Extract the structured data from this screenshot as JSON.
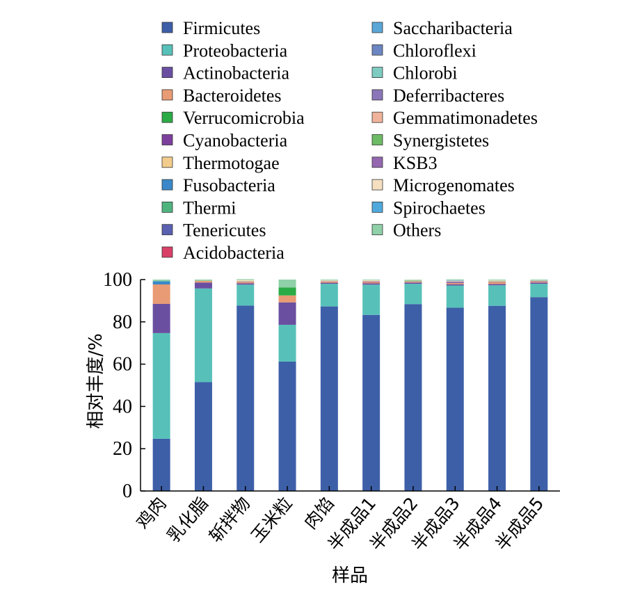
{
  "chart_data": {
    "type": "bar",
    "stacked": true,
    "title": "",
    "xlabel": "样品",
    "ylabel": "相对丰度/%",
    "ylim": [
      0,
      100
    ],
    "yticks": [
      0,
      20,
      40,
      60,
      80,
      100
    ],
    "grid": false,
    "legend_position": "top",
    "categories": [
      "鸡肉",
      "乳化脂",
      "斩拌物",
      "玉米粒",
      "肉馅",
      "半成品1",
      "半成品2",
      "半成品3",
      "半成品4",
      "半成品5"
    ],
    "series": [
      {
        "name": "Firmicutes",
        "color": "#3d5fa8",
        "values": [
          24.7,
          51.5,
          87.7,
          61.2,
          87.3,
          83.3,
          88.4,
          86.7,
          87.6,
          91.7
        ]
      },
      {
        "name": "Proteobacteria",
        "color": "#57c1b9",
        "values": [
          50.0,
          44.3,
          9.9,
          17.4,
          10.7,
          14.3,
          9.6,
          10.5,
          9.7,
          6.3
        ]
      },
      {
        "name": "Actinobacteria",
        "color": "#6a4fa1",
        "values": [
          13.8,
          2.8,
          0.6,
          10.6,
          0.5,
          0.6,
          0.6,
          0.6,
          0.6,
          0.6
        ]
      },
      {
        "name": "Bacteroidetes",
        "color": "#e89b74",
        "values": [
          9.2,
          0.8,
          0.5,
          3.3,
          0.6,
          0.6,
          0.4,
          0.6,
          0.8,
          0.4
        ]
      },
      {
        "name": "Verrucomicrobia",
        "color": "#2bab46",
        "values": [
          0,
          0,
          0,
          3.8,
          0,
          0,
          0,
          0,
          0,
          0
        ]
      },
      {
        "name": "Cyanobacteria",
        "color": "#7d3f9c",
        "values": [
          0,
          0,
          0.2,
          0,
          0.1,
          0.3,
          0.1,
          0.4,
          0.2,
          0.2
        ]
      },
      {
        "name": "Thermotogae",
        "color": "#f2cc8c",
        "values": [
          0,
          0,
          0.4,
          0,
          0.1,
          0.2,
          0.1,
          0.1,
          0.3,
          0.1
        ]
      },
      {
        "name": "Fusobacteria",
        "color": "#3a88c9",
        "values": [
          1.5,
          0,
          0,
          0,
          0,
          0,
          0,
          0.2,
          0,
          0
        ]
      },
      {
        "name": "Thermi",
        "color": "#4fb37f",
        "values": [
          0,
          0,
          0.1,
          0,
          0,
          0,
          0.2,
          0,
          0.1,
          0
        ]
      },
      {
        "name": "Tenericutes",
        "color": "#5a61b0",
        "values": [
          0,
          0,
          0,
          0,
          0,
          0,
          0,
          0,
          0,
          0
        ]
      },
      {
        "name": "Acidobacteria",
        "color": "#d94068",
        "values": [
          0,
          0,
          0,
          0,
          0,
          0,
          0,
          0.1,
          0,
          0
        ]
      },
      {
        "name": "Saccharibacteria",
        "color": "#5aa7d8",
        "values": [
          0,
          0,
          0,
          0,
          0,
          0,
          0,
          0,
          0,
          0
        ]
      },
      {
        "name": "Chloroflexi",
        "color": "#6b86c2",
        "values": [
          0,
          0,
          0,
          0,
          0,
          0,
          0,
          0,
          0,
          0
        ]
      },
      {
        "name": "Chlorobi",
        "color": "#7ecbc2",
        "values": [
          0,
          0,
          0,
          0,
          0,
          0,
          0,
          0,
          0,
          0
        ]
      },
      {
        "name": "Deferribacteres",
        "color": "#8a76b8",
        "values": [
          0,
          0,
          0,
          0,
          0,
          0,
          0,
          0,
          0,
          0
        ]
      },
      {
        "name": "Gemmatimonadetes",
        "color": "#f0b29a",
        "values": [
          0,
          0,
          0,
          0,
          0,
          0,
          0,
          0,
          0,
          0
        ]
      },
      {
        "name": "Synergistetes",
        "color": "#6dbb64",
        "values": [
          0,
          0,
          0,
          0,
          0,
          0,
          0.2,
          0,
          0,
          0
        ]
      },
      {
        "name": "KSB3",
        "color": "#9467b0",
        "values": [
          0,
          0,
          0,
          0,
          0,
          0,
          0,
          0,
          0,
          0
        ]
      },
      {
        "name": "Microgenomates",
        "color": "#f5dfc0",
        "values": [
          0,
          0,
          0.4,
          0,
          0.3,
          0.4,
          0.2,
          0.3,
          0.3,
          0.2
        ]
      },
      {
        "name": "Spirochaetes",
        "color": "#4fa9dd",
        "values": [
          0,
          0,
          0,
          0,
          0,
          0,
          0,
          0.2,
          0,
          0
        ]
      },
      {
        "name": "Others",
        "color": "#8fd0a8",
        "values": [
          0.8,
          0.6,
          0.4,
          3.7,
          0.4,
          0.3,
          0.2,
          0.4,
          0.4,
          0.5
        ]
      }
    ]
  }
}
